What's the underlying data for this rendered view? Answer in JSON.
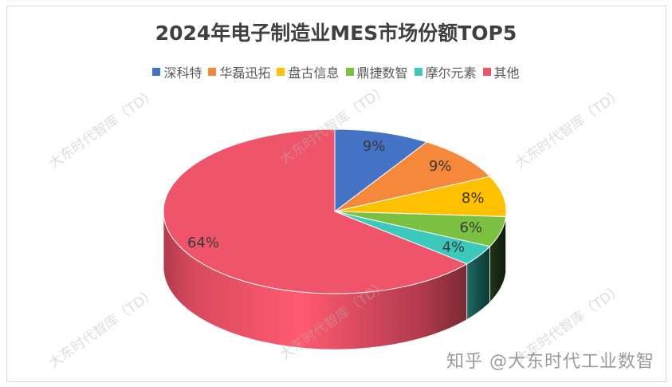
{
  "chart_data": {
    "type": "pie",
    "style": "3d",
    "title": "2024年电子制造业MES市场份额TOP5",
    "legend_position": "top",
    "categories": [
      "深科特",
      "华磊迅拓",
      "盘古信息",
      "鼎捷数智",
      "摩尔元素",
      "其他"
    ],
    "values": [
      9,
      9,
      8,
      6,
      4,
      64
    ],
    "labels": [
      "9%",
      "9%",
      "8%",
      "6%",
      "4%",
      "64%"
    ],
    "colors": [
      "#4472c4",
      "#f5883a",
      "#ffc000",
      "#7ac142",
      "#3cc8bd",
      "#ef546b"
    ],
    "unit": "%"
  },
  "legend": [
    {
      "label": "深科特",
      "color": "#4472c4"
    },
    {
      "label": "华磊迅拓",
      "color": "#f5883a"
    },
    {
      "label": "盘古信息",
      "color": "#ffc000"
    },
    {
      "label": "鼎捷数智",
      "color": "#7ac142"
    },
    {
      "label": "摩尔元素",
      "color": "#3cc8bd"
    },
    {
      "label": "其他",
      "color": "#ef546b"
    }
  ],
  "watermark_text": "大东时代智库（TD）",
  "credit": "知乎 @大东时代工业数智"
}
